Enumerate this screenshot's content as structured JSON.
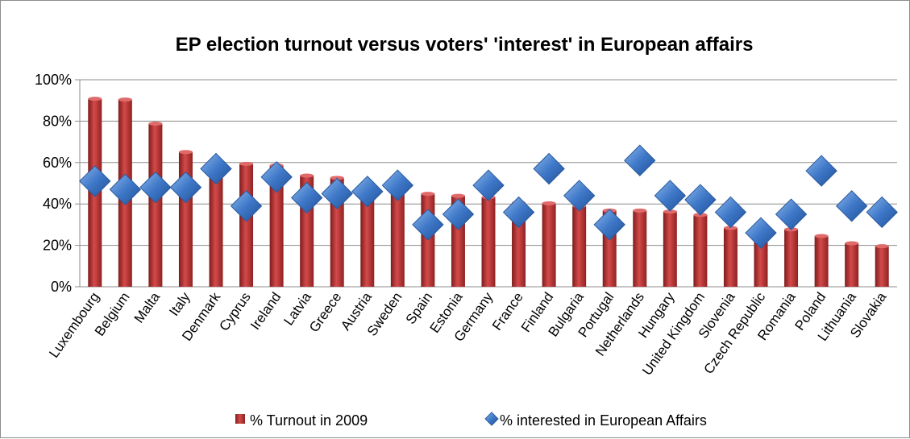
{
  "chart_data": {
    "type": "bar",
    "title": "EP election turnout versus voters' 'interest' in European affairs",
    "categories": [
      "Luxembourg",
      "Belgium",
      "Malta",
      "Italy",
      "Denmark",
      "Cyprus",
      "Ireland",
      "Latvia",
      "Greece",
      "Austria",
      "Sweden",
      "Spain",
      "Estonia",
      "Germany",
      "France",
      "Finland",
      "Bulgaria",
      "Portugal",
      "Netherlands",
      "Hungary",
      "United Kingdom",
      "Slovenia",
      "Czech Republic",
      "Romania",
      "Poland",
      "Lithuania",
      "Slovakia"
    ],
    "ylim": [
      0,
      100
    ],
    "yticks": [
      "0%",
      "20%",
      "40%",
      "60%",
      "80%",
      "100%"
    ],
    "grid": true,
    "legend_position": "bottom",
    "series": [
      {
        "name": "% Turnout in 2009",
        "kind": "bar",
        "color": "#c0393a",
        "values": [
          90.8,
          90.4,
          78.8,
          65.1,
          59.5,
          59.4,
          58.6,
          53.7,
          52.6,
          46.0,
          45.5,
          44.9,
          43.9,
          43.3,
          40.6,
          40.3,
          39.0,
          36.8,
          36.8,
          36.3,
          34.7,
          28.4,
          28.2,
          27.7,
          24.5,
          21.0,
          19.6
        ]
      },
      {
        "name": "% interested in European Affairs",
        "kind": "marker",
        "color": "#3a73c4",
        "values": [
          51,
          47,
          48,
          48,
          57,
          39,
          53,
          43,
          45,
          46,
          49,
          30,
          35,
          49,
          36,
          57,
          44,
          30,
          61,
          44,
          42,
          36,
          26,
          35,
          56,
          39,
          36
        ]
      }
    ]
  }
}
